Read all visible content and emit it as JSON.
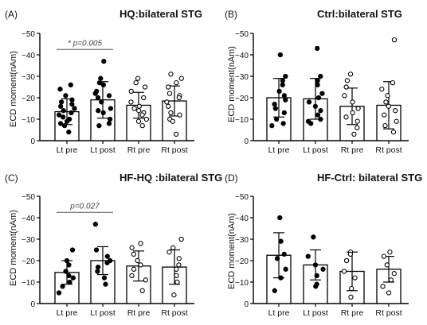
{
  "chart_data": [
    {
      "type": "bar",
      "panel_label": "(A)",
      "title": "HQ:bilateral STG",
      "ylabel": "ECD moment(nAm)",
      "ylim": [
        0,
        -50
      ],
      "yticks": [
        "0",
        "−10",
        "−20",
        "−30",
        "−40",
        "−50"
      ],
      "categories": [
        "Lt pre",
        "Lt post",
        "Rt pre",
        "Rt post"
      ],
      "means": [
        -13.5,
        -19,
        -16.5,
        -18.5
      ],
      "sd": [
        6,
        8.5,
        6,
        7
      ],
      "points": [
        [
          -26,
          -24,
          -21,
          -19,
          -18,
          -17,
          -16,
          -15,
          -14,
          -13,
          -12,
          -11,
          -10,
          -9,
          -8,
          -7,
          -4
        ],
        [
          -37,
          -29,
          -27,
          -26,
          -23,
          -22,
          -21,
          -20,
          -18,
          -15,
          -14,
          -13,
          -10,
          -8,
          -7
        ],
        [
          -29,
          -27,
          -25,
          -23,
          -20,
          -18,
          -16,
          -15,
          -14,
          -13,
          -12,
          -10,
          -9,
          -7
        ],
        [
          -31,
          -29,
          -27,
          -25,
          -22,
          -21,
          -20,
          -18,
          -16,
          -13,
          -12,
          -10,
          -9,
          -3
        ]
      ],
      "filled": [
        true,
        true,
        false,
        false
      ],
      "significance": {
        "label": "* p=0.005",
        "from": 0,
        "to": 1
      }
    },
    {
      "type": "bar",
      "panel_label": "(B)",
      "title": "Ctrl:bilateral STG",
      "ylabel": "ECD moment(nAm)",
      "ylim": [
        0,
        -50
      ],
      "yticks": [
        "0",
        "−10",
        "−20",
        "−30",
        "−40",
        "−50"
      ],
      "categories": [
        "Lt pre",
        "Lt post",
        "Rt pre",
        "Rt post"
      ],
      "means": [
        -20,
        -19.5,
        -16,
        -16.5
      ],
      "sd": [
        9,
        9.5,
        8.5,
        11
      ],
      "points": [
        [
          -40,
          -30,
          -28,
          -26,
          -23,
          -21,
          -19,
          -17,
          -15,
          -13,
          -10,
          -8,
          -7
        ],
        [
          -43,
          -30,
          -28,
          -26,
          -22,
          -20,
          -18,
          -16,
          -14,
          -12,
          -10,
          -9,
          -8
        ],
        [
          -31,
          -28,
          -25,
          -21,
          -18,
          -15,
          -13,
          -11,
          -9,
          -6,
          -3
        ],
        [
          -47,
          -27,
          -24,
          -21,
          -18,
          -16,
          -14,
          -12,
          -9,
          -7,
          -4
        ]
      ],
      "filled": [
        true,
        true,
        false,
        false
      ]
    },
    {
      "type": "bar",
      "panel_label": "(C)",
      "title": "HF-HQ :bilateral STG",
      "ylabel": "ECD moment(nAm)",
      "ylim": [
        0,
        -50
      ],
      "yticks": [
        "0",
        "−10",
        "−20",
        "−30",
        "−40",
        "−50"
      ],
      "categories": [
        "Lt pre",
        "Lt post",
        "Rt pre",
        "Rt post"
      ],
      "means": [
        -14.5,
        -20,
        -17.5,
        -17
      ],
      "sd": [
        5.5,
        6.5,
        7,
        8
      ],
      "points": [
        [
          -25,
          -20,
          -18,
          -15,
          -13,
          -12,
          -10,
          -8,
          -5
        ],
        [
          -37,
          -25,
          -22,
          -20,
          -19,
          -17,
          -15,
          -12,
          -9
        ],
        [
          -28,
          -26,
          -23,
          -20,
          -18,
          -16,
          -13,
          -11,
          -6
        ],
        [
          -30,
          -26,
          -24,
          -21,
          -18,
          -16,
          -13,
          -10,
          -4
        ]
      ],
      "filled": [
        true,
        true,
        false,
        false
      ],
      "significance": {
        "label": "p=0.027",
        "from": 0,
        "to": 1
      }
    },
    {
      "type": "bar",
      "panel_label": "(D)",
      "title": "HF-Ctrl: bilateral STG",
      "ylabel": "ECD moment(nAm)",
      "ylim": [
        0,
        -50
      ],
      "yticks": [
        "0",
        "−10",
        "−20",
        "−30",
        "−40",
        "−50"
      ],
      "categories": [
        "Lt pre",
        "Lt post",
        "Rt pre",
        "Rt post"
      ],
      "means": [
        -22.5,
        -18,
        -15,
        -16
      ],
      "sd": [
        10.5,
        7,
        9,
        6
      ],
      "points": [
        [
          -40,
          -29,
          -23,
          -21,
          -16,
          -12,
          -6
        ],
        [
          -31,
          -22,
          -18,
          -16,
          -13,
          -9,
          -8
        ],
        [
          -24,
          -23,
          -20,
          -15,
          -12,
          -7,
          -3
        ],
        [
          -24,
          -22,
          -18,
          -14,
          -11,
          -8,
          -5
        ]
      ],
      "filled": [
        true,
        true,
        false,
        false
      ]
    }
  ]
}
